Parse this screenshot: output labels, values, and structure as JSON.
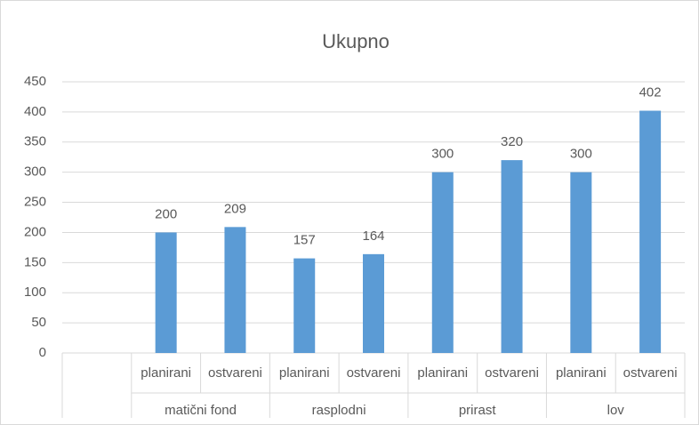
{
  "chart_data": {
    "type": "bar",
    "title": "Ukupno",
    "categories": [
      null,
      "planirani",
      "ostvareni",
      "planirani",
      "ostvareni",
      "planirani",
      "ostvareni",
      "planirani",
      "ostvareni"
    ],
    "groups": [
      "matični fond",
      "rasplodni",
      "prirast",
      "lov"
    ],
    "values": [
      null,
      200,
      209,
      157,
      164,
      300,
      320,
      300,
      402
    ],
    "color": "#5b9bd5",
    "ylim": [
      0,
      450
    ],
    "yticks": [
      0,
      50,
      100,
      150,
      200,
      250,
      300,
      350,
      400,
      450
    ],
    "grid": true
  }
}
